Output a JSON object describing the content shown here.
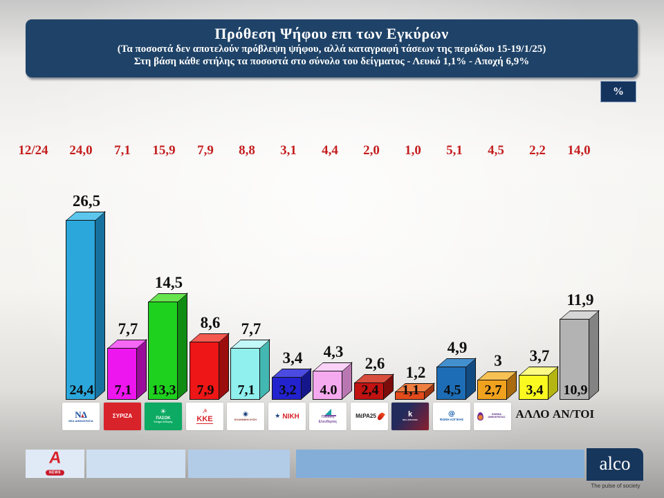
{
  "header": {
    "title": "Πρόθεση Ψήφου επι των Εγκύρων",
    "subtitle1": "(Τα ποσοστά δεν αποτελούν πρόβλεψη ψήφου, αλλά καταγραφή τάσεων της περιόδου 15-19/1/25)",
    "subtitle2": "Στη βάση κάθε στήλης τα ποσοστά στο σύνολο του δείγματος - Λευκό 1,1% - Αποχή 6,9%"
  },
  "percent_badge": "%",
  "chart_data": {
    "type": "bar",
    "title": "Πρόθεση Ψήφου επι των Εγκύρων",
    "unit": "%",
    "categories": [
      "ΝΕΑ ΔΗΜΟΚΡΑΤΙΑ",
      "ΣΥΡΙΖΑ",
      "ΠΑΣΟΚ",
      "ΚΚΕ",
      "ΕΛΛΗΝΙΚΗ ΛΥΣΗ",
      "ΝΙΚΗ",
      "ΠΛΕΥΣΗ ΕΛΕΥΘΕΡΙΑΣ",
      "ΜέΡΑ25",
      "ΝΕΑ ΑΡΙΣΤΕΡΑ",
      "ΦΩΝΗ ΛΟΓΙΚΗΣ",
      "ΚΙΝΗΜΑ ΔΗΜΟΚΡΑΤΙΑΣ",
      "ΑΛΛΟ",
      "ΑΝ/ΤΟΙ"
    ],
    "series": [
      {
        "name": "επί των εγκύρων",
        "values": [
          26.5,
          7.7,
          14.5,
          8.6,
          7.7,
          3.4,
          4.3,
          2.6,
          1.2,
          4.9,
          3,
          3.7,
          11.9
        ],
        "labels": [
          "26,5",
          "7,7",
          "14,5",
          "8,6",
          "7,7",
          "3,4",
          "4,3",
          "2,6",
          "1,2",
          "4,9",
          "3",
          "3,7",
          "11,9"
        ]
      },
      {
        "name": "στο σύνολο του δείγματος",
        "values": [
          24.4,
          7.1,
          13.3,
          7.9,
          7.1,
          3.2,
          4.0,
          2.4,
          1.1,
          4.5,
          2.7,
          3.4,
          10.9
        ],
        "labels": [
          "24,4",
          "7,1",
          "13,3",
          "7,9",
          "7,1",
          "3,2",
          "4.0",
          "2,4",
          "1,1",
          "4,5",
          "2,7",
          "3,4",
          "10,9"
        ]
      },
      {
        "name": "12/24",
        "values": [
          24.0,
          7.1,
          15.9,
          7.9,
          8.8,
          3.1,
          4.4,
          2.0,
          1.0,
          5.1,
          4.5,
          2.2,
          14.0
        ],
        "labels": [
          "24,0",
          "7,1",
          "15,9",
          "7,9",
          "8,8",
          "3,1",
          "4,4",
          "2,0",
          "1,0",
          "5,1",
          "4,5",
          "2,2",
          "14,0"
        ]
      }
    ],
    "bar_colors": {
      "front": [
        "#2ba7dc",
        "#ee16ee",
        "#1fd11f",
        "#ee1616",
        "#8ff0ee",
        "#2222cf",
        "#f5a9ee",
        "#c11212",
        "#e34b1b",
        "#1d6db6",
        "#f0a21e",
        "#fafa20",
        "#b3b3b3"
      ],
      "top": [
        "#5cc6ec",
        "#f567f5",
        "#67e44e",
        "#f55a50",
        "#c2f8f7",
        "#4b4be2",
        "#fad2f7",
        "#d94f3d",
        "#ef7e41",
        "#4390cf",
        "#f7c253",
        "#fcfc84",
        "#d6d6d6"
      ],
      "side": [
        "#17719f",
        "#9a0d9a",
        "#108c13",
        "#9c0e0e",
        "#43b8b2",
        "#16168c",
        "#b977b2",
        "#7c0b0b",
        "#9e3412",
        "#124b82",
        "#a96a10",
        "#b4b412",
        "#838383"
      ]
    },
    "logos": [
      {
        "kind": "box",
        "bg": "#ffffff",
        "icon": "nd-monogram-icon",
        "icon_glyph": "ΝΔ",
        "icon_color": "#1a4e9c",
        "text": "ΝΕΑ ΔΗΜΟΚΡΑΤΙΑ",
        "text_color": "#1a4e9c",
        "text_size": 4
      },
      {
        "kind": "box",
        "bg": "#d8232a",
        "text": "ΣΥΡΙΖΑ",
        "text_color": "#ffffff",
        "text_size": 8
      },
      {
        "kind": "box",
        "bg": "#0caa62",
        "icon": "sun-icon",
        "icon_glyph": "☀",
        "icon_color": "#ffffff",
        "text": "ΠΑΣΟΚ",
        "text_color": "#ffffff",
        "text_size": 6,
        "sub": "Κίνημα Αλλαγής",
        "sub_color": "#d9f7e8",
        "sub_size": 3.5
      },
      {
        "kind": "box",
        "bg": "#ffffff",
        "icon": "hammer-sickle-icon",
        "icon_glyph": "☭",
        "icon_color": "#d8232a",
        "text": "ΚΚΕ",
        "text_color": "#d8232a",
        "text_size": 11,
        "underline": true
      },
      {
        "kind": "box",
        "bg": "#ffffff",
        "icon": "circle-emblem-icon",
        "icon_glyph": "◉",
        "icon_color": "#1b3f7a",
        "text": "ΕΛΛΗΝΙΚΗ ΛΥΣΗ",
        "text_color": "#8a2f1f",
        "text_size": 4
      },
      {
        "kind": "box",
        "bg": "#ffffff",
        "row": true,
        "icon": "star-icon",
        "icon_glyph": "★",
        "icon_color": "#1b3f7a",
        "text": "ΝΙΚΗ",
        "text_color": "#d8232a",
        "text_size": 10
      },
      {
        "kind": "box",
        "bg": "#ffffff",
        "icon": "sailboat-icon",
        "text": "Πλεύση",
        "text_color": "#7a4ea0",
        "text_size": 5,
        "sub": "Ελευθερίας",
        "sub_color": "#7a4ea0",
        "sub_size": 5
      },
      {
        "kind": "box",
        "bg": "#ffffff",
        "row": true,
        "icon": "flame-icon",
        "icon_after": true,
        "text": "ΜέΡΑ25",
        "text_color": "#1a1a1a",
        "text_size": 8
      },
      {
        "kind": "box",
        "bg": "gradient-navy-red",
        "icon": "walking-figure-icon",
        "icon_glyph": "k",
        "icon_color": "#ffffff",
        "text": "ΝΕΑ ΑΡΙΣΤΕΡΑ",
        "text_color": "#ffffff",
        "text_size": 3
      },
      {
        "kind": "box",
        "bg": "#ffffff",
        "icon": "swirl-icon",
        "icon_glyph": "@",
        "icon_color": "#1b5fae",
        "text": "ΦΩΝΗ ΛΟΓΙΚΗΣ",
        "text_color": "#1b5fae",
        "text_size": 4.5
      },
      {
        "kind": "box",
        "bg": "#ffffff",
        "row": true,
        "icon": "tulip-icon",
        "text": "ΚΙΝΗΜΑ ΔΗΜΟΚΡΑΤΙΑΣ",
        "text_color": "#5c2d82",
        "text_size": 3.5
      },
      {
        "kind": "text",
        "text": "ΑΛΛΟ"
      },
      {
        "kind": "text",
        "text": "ΑΝ/ΤΟΙ"
      }
    ]
  },
  "footer": {
    "alpha_letter": "A",
    "alpha_news": "NEWS",
    "alco": "alco",
    "tagline": "The pulse of society"
  }
}
